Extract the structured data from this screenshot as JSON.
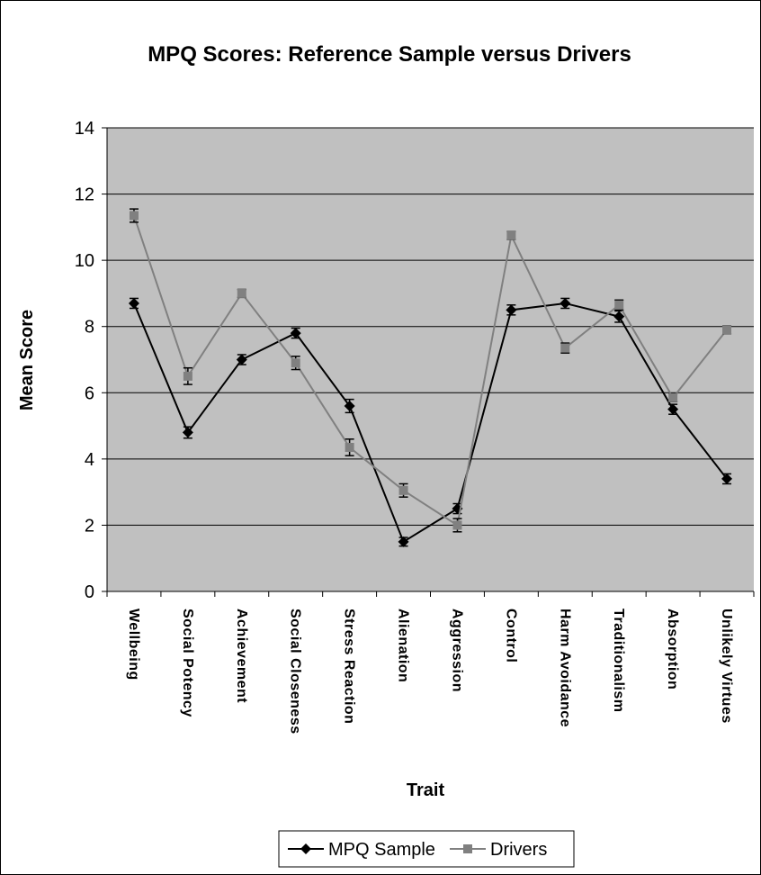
{
  "chart_data": {
    "type": "line",
    "title": "MPQ Scores: Reference Sample versus Drivers",
    "xlabel": "Trait",
    "ylabel": "Mean Score",
    "ylim": [
      0,
      14
    ],
    "yticks": [
      0,
      2,
      4,
      6,
      8,
      10,
      12,
      14
    ],
    "grid": true,
    "legend_position": "bottom",
    "categories": [
      "Wellbeing",
      "Social Potency",
      "Achievement",
      "Social Closeness",
      "Stress Reaction",
      "Alienation",
      "Aggression",
      "Control",
      "Harm Avoidance",
      "Traditionalism",
      "Absorption",
      "Unlikely Virtues"
    ],
    "series": [
      {
        "name": "MPQ Sample",
        "color": "#000000",
        "marker": "diamond",
        "values": [
          8.7,
          4.8,
          7.0,
          7.8,
          5.6,
          1.5,
          2.5,
          8.5,
          8.7,
          8.3,
          5.5,
          3.4
        ],
        "errors": [
          0.15,
          0.17,
          0.15,
          0.15,
          0.2,
          0.13,
          0.15,
          0.15,
          0.15,
          0.17,
          0.15,
          0.15
        ]
      },
      {
        "name": "Drivers",
        "color": "#808080",
        "marker": "square",
        "values": [
          11.35,
          6.5,
          9.0,
          6.9,
          4.35,
          3.05,
          2.0,
          10.75,
          7.35,
          8.65,
          5.85,
          7.9
        ],
        "errors": [
          0.2,
          0.25,
          0.12,
          0.2,
          0.25,
          0.2,
          0.2,
          0.12,
          0.15,
          0.15,
          0.12,
          0.12
        ]
      }
    ],
    "colors": {
      "plot_background": "#c0c0c0",
      "gridline": "#000000"
    }
  }
}
